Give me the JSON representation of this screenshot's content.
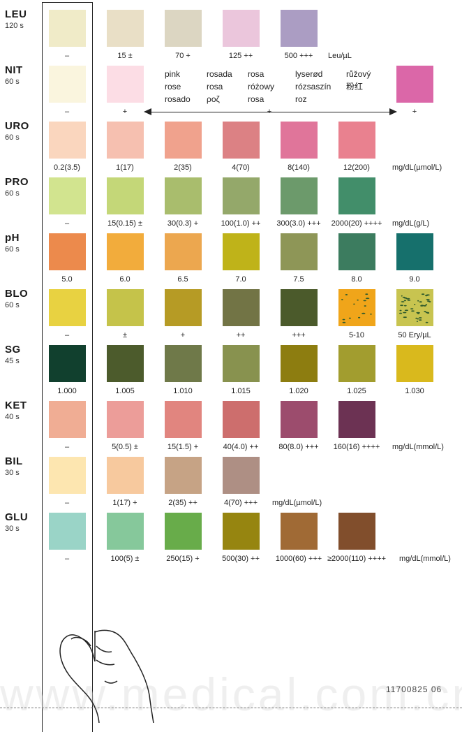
{
  "rows": [
    {
      "name": "LEU",
      "time": "120 s",
      "swatches": [
        "#f0ebc8",
        "#e9dfc6",
        "#dcd6c2",
        "#ebc6dc",
        "#ab9dc3"
      ],
      "captions": [
        "–",
        "15 ±",
        "70 +",
        "125 ++",
        "500 +++"
      ],
      "unit": "Leu/µL"
    },
    {
      "name": "NIT",
      "time": "60 s",
      "swatches": [
        "#faf5de",
        "#fcdde5",
        "#db67a8"
      ],
      "captions": [
        "–",
        "+",
        "+"
      ],
      "arrow_label": "+"
    },
    {
      "name": "URO",
      "time": "60 s",
      "swatches": [
        "#fad6be",
        "#f6c0b0",
        "#f0a28d",
        "#dc8184",
        "#e0759a",
        "#e9818f"
      ],
      "captions": [
        "0.2(3.5)",
        "1(17)",
        "2(35)",
        "4(70)",
        "8(140)",
        "12(200)"
      ],
      "unit": "mg/dL(µmol/L)"
    },
    {
      "name": "PRO",
      "time": "60 s",
      "swatches": [
        "#d2e48f",
        "#c4d778",
        "#a9bd6d",
        "#94a86a",
        "#6c9a6b",
        "#428e6a"
      ],
      "captions": [
        "–",
        "15(0.15) ±",
        "30(0.3) +",
        "100(1.0) ++",
        "300(3.0) +++",
        "2000(20) ++++"
      ],
      "unit": "mg/dL(g/L)"
    },
    {
      "name": "pH",
      "time": "60 s",
      "swatches": [
        "#ec8a4c",
        "#f2ac3c",
        "#eca74f",
        "#bfb319",
        "#8e9657",
        "#3c7c5f",
        "#16706c"
      ],
      "captions": [
        "5.0",
        "6.0",
        "6.5",
        "7.0",
        "7.5",
        "8.0",
        "9.0"
      ]
    },
    {
      "name": "BLO",
      "time": "60 s",
      "swatches": [
        "#e8d241",
        "#c5c34a",
        "#b69b25",
        "#727445",
        "#4b5a2b",
        "#f0a51a",
        "#c8c450"
      ],
      "captions": [
        "–",
        "±",
        "+",
        "++",
        "+++",
        "5-10",
        "50 Ery/µL"
      ]
    },
    {
      "name": "SG",
      "time": "45 s",
      "swatches": [
        "#11402e",
        "#4c5b2c",
        "#6f7949",
        "#88924f",
        "#8d7d10",
        "#a29d2f",
        "#d9b91d"
      ],
      "captions": [
        "1.000",
        "1.005",
        "1.010",
        "1.015",
        "1.020",
        "1.025",
        "1.030"
      ]
    },
    {
      "name": "KET",
      "time": "40 s",
      "swatches": [
        "#f0ad94",
        "#ec9d99",
        "#e1857f",
        "#cd6e6d",
        "#9c4c6d",
        "#6c3253"
      ],
      "captions": [
        "–",
        "5(0.5) ±",
        "15(1.5) +",
        "40(4.0) ++",
        "80(8.0) +++",
        "160(16) ++++"
      ],
      "unit": "mg/dL(mmol/L)"
    },
    {
      "name": "BIL",
      "time": "30 s",
      "swatches": [
        "#fde6b0",
        "#f7c99e",
        "#c6a385",
        "#ae8f84"
      ],
      "captions": [
        "–",
        "1(17) +",
        "2(35) ++",
        "4(70) +++"
      ],
      "unit": "mg/dL(µmol/L)"
    },
    {
      "name": "GLU",
      "time": "30 s",
      "swatches": [
        "#9ad4c7",
        "#86c89b",
        "#68ac4a",
        "#968510",
        "#a06a35",
        "#814e2c"
      ],
      "captions": [
        "–",
        "100(5) ±",
        "250(15) +",
        "500(30) ++",
        "1000(60) +++",
        "≥2000(110) ++++"
      ],
      "unit": "mg/dL(mmol/L)"
    }
  ],
  "nit_languages": [
    [
      "pink",
      "rose",
      "rosado"
    ],
    [
      "rosada",
      "rosa",
      "ροζ"
    ],
    [
      "rosa",
      "różowy",
      "rosa"
    ],
    [
      "lyserød",
      "rózsaszín",
      "roz"
    ],
    [
      "růžový",
      "粉红"
    ]
  ],
  "product_code": "11700825 06",
  "watermark_text": "www.medical.com.cn"
}
